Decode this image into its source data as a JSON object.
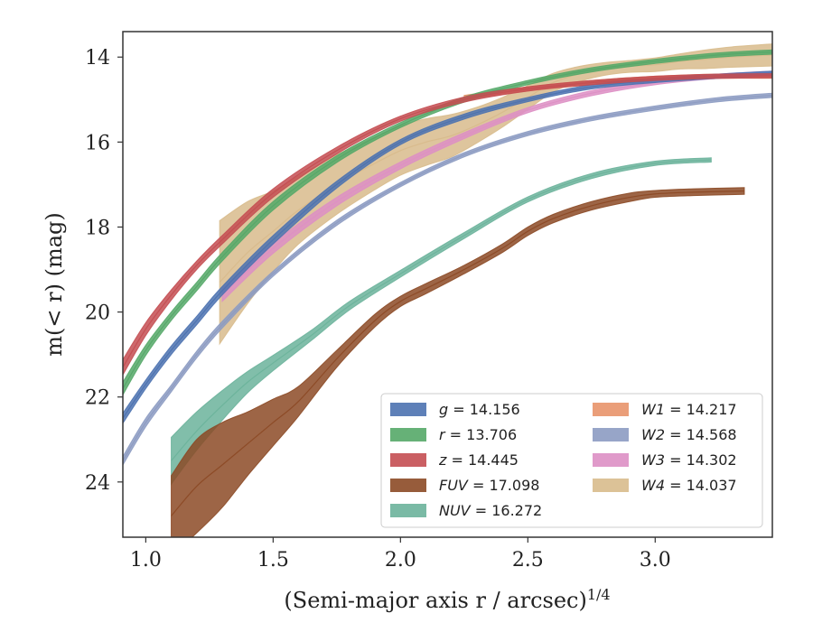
{
  "chart_data": {
    "type": "area",
    "xlabel": "(Semi-major axis r / arcsec)^1/4",
    "ylabel": "m(< r) (mag)",
    "xlim": [
      0.91,
      3.46
    ],
    "ylim": [
      25.3,
      13.4
    ],
    "y_inverted": true,
    "grid": false,
    "legend_position": "lower-right",
    "x_ticks": [
      1.0,
      1.5,
      2.0,
      2.5,
      3.0
    ],
    "x_tick_labels": [
      "1.0",
      "1.5",
      "2.0",
      "2.5",
      "3.0"
    ],
    "y_ticks": [
      14,
      16,
      18,
      20,
      22,
      24
    ],
    "y_tick_labels": [
      "14",
      "16",
      "18",
      "20",
      "22",
      "24"
    ],
    "series": [
      {
        "name": "g = 14.156",
        "var": "g",
        "value": "14.156",
        "color": "#4c72b0",
        "x": [
          0.91,
          1.0,
          1.1,
          1.2,
          1.3,
          1.5,
          1.75,
          2.0,
          2.25,
          2.5,
          2.75,
          3.0,
          3.25,
          3.46
        ],
        "y": [
          22.5,
          21.7,
          20.9,
          20.2,
          19.5,
          18.3,
          17.0,
          16.0,
          15.4,
          15.0,
          14.7,
          14.55,
          14.45,
          14.38
        ],
        "band": [
          0.12,
          0.1,
          0.1,
          0.1,
          0.1,
          0.1,
          0.08,
          0.06,
          0.06,
          0.05,
          0.05,
          0.05,
          0.05,
          0.05
        ]
      },
      {
        "name": "r = 13.706",
        "var": "r",
        "value": "13.706",
        "color": "#55a868",
        "x": [
          0.91,
          1.0,
          1.1,
          1.2,
          1.3,
          1.5,
          1.75,
          2.0,
          2.25,
          2.5,
          2.75,
          3.0,
          3.25,
          3.46
        ],
        "y": [
          21.8,
          20.9,
          20.1,
          19.4,
          18.7,
          17.5,
          16.4,
          15.6,
          15.0,
          14.6,
          14.3,
          14.1,
          13.95,
          13.88
        ],
        "band": [
          0.15,
          0.12,
          0.1,
          0.1,
          0.1,
          0.1,
          0.08,
          0.06,
          0.06,
          0.05,
          0.05,
          0.05,
          0.05,
          0.05
        ]
      },
      {
        "name": "z = 14.445",
        "var": "z",
        "value": "14.445",
        "color": "#c44e52",
        "x": [
          0.91,
          1.0,
          1.1,
          1.2,
          1.3,
          1.5,
          1.75,
          2.0,
          2.25,
          2.5,
          2.75,
          3.0,
          3.25,
          3.46
        ],
        "y": [
          21.3,
          20.4,
          19.6,
          18.9,
          18.3,
          17.2,
          16.2,
          15.45,
          15.0,
          14.75,
          14.6,
          14.5,
          14.45,
          14.44
        ],
        "band": [
          0.18,
          0.15,
          0.12,
          0.1,
          0.1,
          0.1,
          0.08,
          0.06,
          0.06,
          0.05,
          0.05,
          0.05,
          0.05,
          0.05
        ]
      },
      {
        "name": "FUV = 17.098",
        "var": "FUV",
        "value": "17.098",
        "color": "#8c4a26",
        "x": [
          1.1,
          1.2,
          1.3,
          1.4,
          1.5,
          1.6,
          1.75,
          1.9,
          2.0,
          2.1,
          2.25,
          2.4,
          2.5,
          2.6,
          2.75,
          2.9,
          3.0,
          3.15,
          3.35
        ],
        "y": [
          24.8,
          24.1,
          23.6,
          23.1,
          22.6,
          22.1,
          21.1,
          20.2,
          19.75,
          19.45,
          19.0,
          18.5,
          18.1,
          17.8,
          17.5,
          17.3,
          17.22,
          17.18,
          17.15
        ],
        "band": [
          0.95,
          1.1,
          1.0,
          0.75,
          0.55,
          0.35,
          0.2,
          0.15,
          0.12,
          0.12,
          0.1,
          0.1,
          0.1,
          0.1,
          0.1,
          0.1,
          0.08,
          0.08,
          0.08
        ]
      },
      {
        "name": "NUV = 16.272",
        "var": "NUV",
        "value": "16.272",
        "color": "#6bb39b",
        "x": [
          1.1,
          1.2,
          1.3,
          1.4,
          1.5,
          1.65,
          1.8,
          2.0,
          2.25,
          2.5,
          2.75,
          3.0,
          3.22
        ],
        "y": [
          23.5,
          22.8,
          22.2,
          21.65,
          21.2,
          20.55,
          19.85,
          19.1,
          18.2,
          17.35,
          16.8,
          16.5,
          16.42
        ],
        "band": [
          0.55,
          0.45,
          0.35,
          0.25,
          0.18,
          0.12,
          0.1,
          0.08,
          0.07,
          0.06,
          0.06,
          0.05,
          0.05
        ]
      },
      {
        "name": "W1 = 14.217",
        "var": "W1",
        "value": "14.217",
        "color": "#e8936a",
        "x": [
          2.25,
          2.5,
          2.75,
          3.0,
          3.25,
          3.46
        ],
        "y": [
          14.95,
          14.75,
          14.6,
          14.5,
          14.45,
          14.45
        ],
        "band": [
          0.05,
          0.05,
          0.05,
          0.05,
          0.05,
          0.05
        ]
      },
      {
        "name": "W2 = 14.568",
        "var": "W2",
        "value": "14.568",
        "color": "#8c9bc2",
        "x": [
          0.91,
          1.0,
          1.1,
          1.2,
          1.3,
          1.5,
          1.75,
          2.0,
          2.25,
          2.5,
          2.75,
          3.0,
          3.25,
          3.46
        ],
        "y": [
          23.5,
          22.6,
          21.8,
          21.0,
          20.3,
          19.1,
          17.9,
          17.0,
          16.3,
          15.8,
          15.45,
          15.2,
          15.0,
          14.9
        ],
        "band": [
          0.1,
          0.1,
          0.08,
          0.08,
          0.08,
          0.06,
          0.06,
          0.05,
          0.05,
          0.05,
          0.05,
          0.05,
          0.05,
          0.05
        ]
      },
      {
        "name": "W3 = 14.302",
        "var": "W3",
        "value": "14.302",
        "color": "#dd8fc4",
        "x": [
          1.3,
          1.5,
          1.75,
          2.0,
          2.25,
          2.5,
          2.75,
          3.0,
          3.25,
          3.46
        ],
        "y": [
          19.6,
          18.5,
          17.4,
          16.55,
          15.85,
          15.25,
          14.85,
          14.6,
          14.45,
          14.38
        ],
        "band": [
          0.15,
          0.12,
          0.1,
          0.08,
          0.07,
          0.06,
          0.06,
          0.05,
          0.05,
          0.05
        ]
      },
      {
        "name": "W4 = 14.037",
        "var": "W4",
        "value": "14.037",
        "color": "#d8bb8c",
        "x": [
          1.29,
          1.4,
          1.5,
          1.6,
          1.75,
          1.9,
          2.0,
          2.1,
          2.2,
          2.3,
          2.4,
          2.5,
          2.6,
          2.7,
          2.8,
          2.9,
          3.0,
          3.1,
          3.2,
          3.3,
          3.46
        ],
        "y": [
          19.3,
          18.6,
          18.1,
          17.6,
          17.0,
          16.5,
          16.2,
          16.0,
          15.85,
          15.6,
          15.3,
          14.95,
          14.6,
          14.4,
          14.28,
          14.22,
          14.18,
          14.1,
          14.05,
          14.0,
          13.95
        ],
        "band": [
          1.45,
          1.2,
          0.95,
          0.8,
          0.7,
          0.62,
          0.58,
          0.55,
          0.5,
          0.42,
          0.35,
          0.28,
          0.22,
          0.18,
          0.15,
          0.14,
          0.16,
          0.18,
          0.22,
          0.24,
          0.26
        ]
      }
    ]
  }
}
